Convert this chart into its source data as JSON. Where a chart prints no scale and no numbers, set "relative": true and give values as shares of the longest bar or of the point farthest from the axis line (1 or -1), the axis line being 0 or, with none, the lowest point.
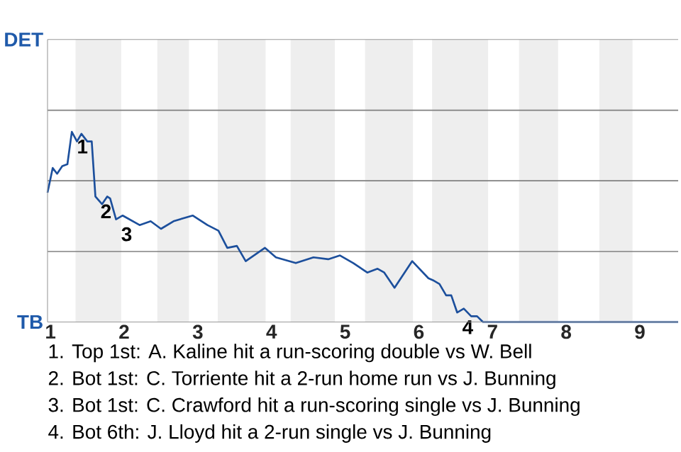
{
  "chart_data": {
    "type": "line",
    "relative": true,
    "x": [
      0.96,
      1.03,
      1.09,
      1.16,
      1.23,
      1.29,
      1.36,
      1.42,
      1.5,
      1.56,
      1.61,
      1.7,
      1.77,
      1.81,
      1.89,
      1.98,
      2.21,
      2.36,
      2.5,
      2.67,
      2.93,
      3.13,
      3.28,
      3.4,
      3.53,
      3.65,
      3.91,
      4.06,
      4.33,
      4.57,
      4.77,
      4.93,
      5.11,
      5.3,
      5.44,
      5.53,
      5.67,
      5.91,
      6.13,
      6.19,
      6.28,
      6.37,
      6.44,
      6.52,
      6.61,
      6.71,
      6.79,
      6.87,
      7.14,
      8.07,
      8.19,
      9.52
    ],
    "series": [
      {
        "color": "#1c4f9c",
        "values": [
          0.68,
          0.81,
          0.78,
          0.82,
          0.83,
          1,
          0.95,
          0.99,
          0.95,
          0.95,
          0.66,
          0.62,
          0.66,
          0.65,
          0.54,
          0.56,
          0.51,
          0.53,
          0.49,
          0.53,
          0.56,
          0.51,
          0.48,
          0.39,
          0.4,
          0.32,
          0.39,
          0.34,
          0.31,
          0.34,
          0.33,
          0.35,
          0.31,
          0.26,
          0.28,
          0.26,
          0.18,
          0.32,
          0.23,
          0.22,
          0.2,
          0.14,
          0.14,
          0.05,
          0.07,
          0.03,
          0.03,
          0,
          0,
          0,
          0,
          0
        ]
      }
    ],
    "xlim": [
      0.96,
      9.52
    ],
    "xticks": [
      1,
      2,
      3,
      4,
      5,
      6,
      7,
      8,
      9
    ],
    "ref_lines": [
      {
        "axis": "y",
        "value": 0.371,
        "color": "#808080"
      },
      {
        "axis": "y",
        "value": 0.743,
        "color": "#808080"
      },
      {
        "axis": "y",
        "value": 1.114,
        "color": "#808080"
      }
    ],
    "bands": [
      {
        "axis": "x",
        "from": 1.34,
        "to": 1.96,
        "color": "#eeeeee"
      },
      {
        "axis": "x",
        "from": 2.45,
        "to": 2.88,
        "color": "#eeeeee"
      },
      {
        "axis": "x",
        "from": 3.27,
        "to": 3.92,
        "color": "#eeeeee"
      },
      {
        "axis": "x",
        "from": 4.26,
        "to": 4.86,
        "color": "#eeeeee"
      },
      {
        "axis": "x",
        "from": 5.27,
        "to": 5.92,
        "color": "#eeeeee"
      },
      {
        "axis": "x",
        "from": 6.18,
        "to": 6.94,
        "color": "#eeeeee"
      },
      {
        "axis": "x",
        "from": 7.36,
        "to": 7.89,
        "color": "#eeeeee"
      },
      {
        "axis": "x",
        "from": 8.45,
        "to": 8.9,
        "color": "#eeeeee"
      }
    ],
    "annotations": [
      "DET",
      "TB",
      {
        "text": "1",
        "x": 1.29,
        "y": 1
      },
      {
        "text": "2",
        "x": 1.61,
        "y": 0.66
      },
      {
        "text": "3",
        "x": 1.89,
        "y": 0.54
      },
      {
        "text": "4",
        "x": 6.52,
        "y": 0.05
      },
      "1. Top 1st: A. Kaline hit a run-scoring double vs W. Bell",
      "2. Bot 1st: C. Torriente hit a 2-run home run vs J. Bunning",
      "3. Bot 1st: C. Crawford hit a run-scoring single vs J. Bunning",
      "4. Bot 6th: J. Lloyd hit a 2-run single vs J. Bunning"
    ]
  }
}
